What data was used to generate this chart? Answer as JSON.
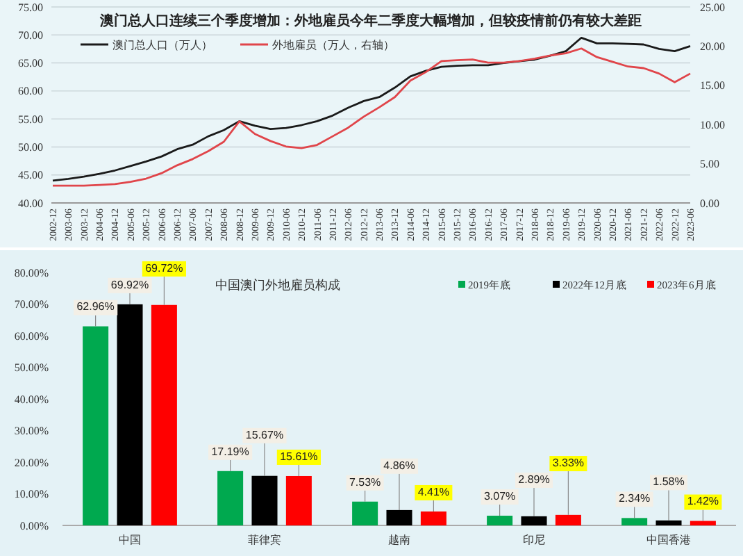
{
  "chart_data": [
    {
      "type": "line",
      "title": "澳门总人口连续三个季度增加：外地雇员今年二季度大幅增加，但较疫情前仍有较大差距",
      "categories": [
        "2002-12",
        "2003-06",
        "2003-12",
        "2004-06",
        "2004-12",
        "2005-06",
        "2005-12",
        "2006-06",
        "2006-12",
        "2007-06",
        "2007-12",
        "2008-06",
        "2008-12",
        "2009-06",
        "2009-12",
        "2010-06",
        "2010-12",
        "2011-06",
        "2011-12",
        "2012-06",
        "2012-12",
        "2013-06",
        "2013-12",
        "2014-06",
        "2014-12",
        "2015-06",
        "2015-12",
        "2016-06",
        "2016-12",
        "2017-06",
        "2017-12",
        "2018-06",
        "2018-12",
        "2019-06",
        "2019-12",
        "2020-06",
        "2020-12",
        "2021-06",
        "2021-12",
        "2022-06",
        "2022-12",
        "2023-06"
      ],
      "series": [
        {
          "name": "澳门总人口（万人）",
          "color": "#1a1a1a",
          "values": [
            44.0,
            44.3,
            44.7,
            45.2,
            45.8,
            46.6,
            47.4,
            48.3,
            49.6,
            50.4,
            51.9,
            53.0,
            54.6,
            53.8,
            53.2,
            53.4,
            53.9,
            54.6,
            55.6,
            57.0,
            58.2,
            58.9,
            60.6,
            62.6,
            63.6,
            64.3,
            64.5,
            64.6,
            64.6,
            65.0,
            65.3,
            65.6,
            66.3,
            67.1,
            69.5,
            68.5,
            68.5,
            68.4,
            68.3,
            67.5,
            67.1,
            68.0
          ]
        },
        {
          "name": "外地雇员（万人，右轴）",
          "color": "#e0454a",
          "axis": "y2",
          "values": [
            2.2,
            2.2,
            2.2,
            2.3,
            2.4,
            2.7,
            3.1,
            3.8,
            4.8,
            5.6,
            6.6,
            7.8,
            10.4,
            8.8,
            7.9,
            7.2,
            7.0,
            7.4,
            8.5,
            9.6,
            11.0,
            12.2,
            13.5,
            15.6,
            16.7,
            18.1,
            18.2,
            18.3,
            17.9,
            17.9,
            18.1,
            18.4,
            18.8,
            19.1,
            19.7,
            18.6,
            18.0,
            17.4,
            17.2,
            16.5,
            15.4,
            16.5
          ]
        }
      ],
      "ylim": [
        40,
        75
      ],
      "yticks": [
        {
          "value": 40,
          "label": "40.00"
        },
        {
          "value": 45,
          "label": "45.00"
        },
        {
          "value": 50,
          "label": "50.00"
        },
        {
          "value": 55,
          "label": "55.00"
        },
        {
          "value": 60,
          "label": "60.00"
        },
        {
          "value": 65,
          "label": "65.00"
        },
        {
          "value": 70,
          "label": "70.00"
        },
        {
          "value": 75,
          "label": "75.00"
        }
      ],
      "y2lim": [
        0,
        25
      ],
      "y2ticks": [
        {
          "value": 0,
          "label": "0.00"
        },
        {
          "value": 5,
          "label": "5.00"
        },
        {
          "value": 10,
          "label": "10.00"
        },
        {
          "value": 15,
          "label": "15.00"
        },
        {
          "value": 20,
          "label": "20.00"
        },
        {
          "value": 25,
          "label": "25.00"
        }
      ],
      "grid": "y",
      "legend": "top"
    },
    {
      "type": "bar",
      "title": "中国澳门外地雇员构成",
      "categories": [
        "中国",
        "菲律宾",
        "越南",
        "印尼",
        "中国香港"
      ],
      "series": [
        {
          "name": "2019年底",
          "color": "#00a94f",
          "values": [
            62.96,
            17.19,
            7.53,
            3.07,
            2.34
          ],
          "value_labels": [
            "62.96%",
            "17.19%",
            "7.53%",
            "3.07%",
            "2.34%"
          ]
        },
        {
          "name": "2022年12月底",
          "color": "#000000",
          "values": [
            69.92,
            15.67,
            4.86,
            2.89,
            1.58
          ],
          "value_labels": [
            "69.92%",
            "15.67%",
            "4.86%",
            "2.89%",
            "1.58%"
          ]
        },
        {
          "name": "2023年6月底",
          "color": "#ff0000",
          "values": [
            69.72,
            15.61,
            4.41,
            3.33,
            1.42
          ],
          "value_labels": [
            "69.72%",
            "15.61%",
            "4.41%",
            "3.33%",
            "1.42%"
          ]
        }
      ],
      "ylim": [
        0,
        80
      ],
      "yticks": [
        {
          "value": 0,
          "label": "0.00%"
        },
        {
          "value": 10,
          "label": "10.00%"
        },
        {
          "value": 20,
          "label": "20.00%"
        },
        {
          "value": 30,
          "label": "30.00%"
        },
        {
          "value": 40,
          "label": "40.00%"
        },
        {
          "value": 50,
          "label": "50.00%"
        },
        {
          "value": 60,
          "label": "60.00%"
        },
        {
          "value": 70,
          "label": "70.00%"
        },
        {
          "value": 80,
          "label": "80.00%"
        }
      ],
      "grid": false,
      "legend": "top right"
    }
  ]
}
